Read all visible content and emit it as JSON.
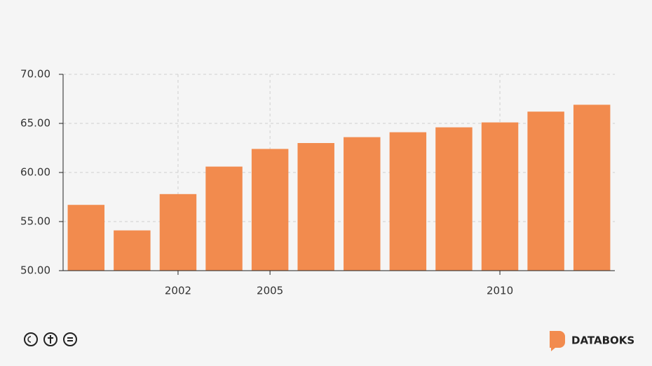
{
  "chart_data": {
    "type": "bar",
    "categories": [
      null,
      null,
      "2002",
      null,
      "2005",
      null,
      null,
      null,
      null,
      "2010",
      null,
      null
    ],
    "values": [
      56.7,
      54.1,
      57.8,
      60.6,
      62.4,
      63.0,
      63.6,
      64.1,
      64.6,
      65.1,
      66.2,
      66.9
    ],
    "color": "#f28b4e",
    "ylim": [
      50,
      70
    ],
    "yticks": [
      {
        "value": 50,
        "label": "50.00"
      },
      {
        "value": 55,
        "label": "55.00"
      },
      {
        "value": 60,
        "label": "60.00"
      },
      {
        "value": 65,
        "label": "65.00"
      },
      {
        "value": 70,
        "label": "70.00"
      }
    ],
    "grid": true
  },
  "footer": {
    "brand": "DATABOKS"
  }
}
